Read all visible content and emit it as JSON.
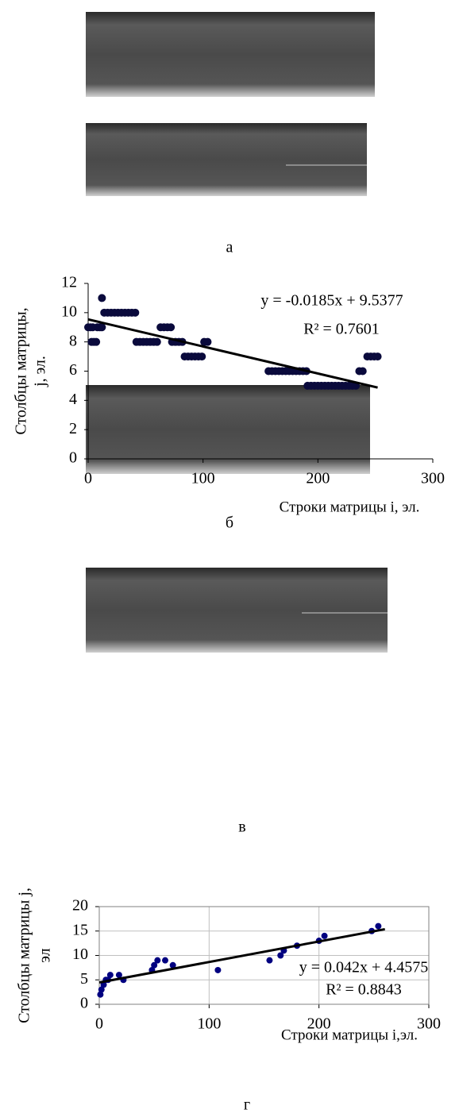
{
  "panel_labels": [
    "а",
    "б",
    "в",
    "г"
  ],
  "chart_data": [
    {
      "type": "scatter",
      "ylabel": [
        "Столбцы матрицы,",
        "j, эл."
      ],
      "xlabel": "Строки матрицы i, эл.",
      "x": [
        0,
        2,
        4,
        3,
        5,
        7,
        8,
        10,
        12,
        12,
        14,
        17,
        20,
        23,
        26,
        29,
        32,
        35,
        38,
        41,
        42,
        45,
        48,
        51,
        54,
        57,
        60,
        63,
        66,
        69,
        72,
        73,
        76,
        79,
        82,
        84,
        87,
        90,
        93,
        96,
        99,
        101,
        104,
        157,
        160,
        163,
        166,
        169,
        172,
        175,
        178,
        181,
        184,
        187,
        190,
        191,
        194,
        197,
        200,
        203,
        206,
        209,
        212,
        215,
        218,
        221,
        224,
        227,
        230,
        233,
        236,
        239,
        243,
        246,
        249,
        252
      ],
      "values": [
        9,
        9,
        9,
        8,
        8,
        8,
        9,
        9,
        9,
        11,
        10,
        10,
        10,
        10,
        10,
        10,
        10,
        10,
        10,
        10,
        8,
        8,
        8,
        8,
        8,
        8,
        8,
        9,
        9,
        9,
        9,
        8,
        8,
        8,
        8,
        7,
        7,
        7,
        7,
        7,
        7,
        8,
        8,
        6,
        6,
        6,
        6,
        6,
        6,
        6,
        6,
        6,
        6,
        6,
        6,
        5,
        5,
        5,
        5,
        5,
        5,
        5,
        5,
        5,
        5,
        5,
        5,
        5,
        5,
        5,
        6,
        6,
        7,
        7,
        7,
        7
      ],
      "color": "#0a0a3c",
      "trendline": {
        "slope": -0.0185,
        "intercept": 9.5377,
        "x_range": [
          0,
          252
        ],
        "color": "#000000"
      },
      "equation": "y = -0.0185x + 9.5377",
      "r2_label": "R² = 0.7601",
      "xlim": [
        0,
        300
      ],
      "xticks": [
        0,
        100,
        200,
        300
      ],
      "ylim": [
        0,
        12
      ],
      "yticks": [
        0,
        2,
        4,
        6,
        8,
        10,
        12
      ],
      "grid": false
    },
    {
      "type": "scatter",
      "ylabel": [
        "Столбцы матрицы j,",
        "эл"
      ],
      "xlabel": "Строки матрицы i,эл.",
      "x": [
        1,
        2,
        4,
        6,
        8,
        10,
        18,
        22,
        48,
        50,
        53,
        60,
        67,
        108,
        155,
        165,
        168,
        180,
        200,
        205,
        248,
        254
      ],
      "values": [
        2,
        3,
        4,
        5,
        5,
        6,
        6,
        5,
        7,
        8,
        9,
        9,
        8,
        7,
        9,
        10,
        11,
        12,
        13,
        14,
        15,
        16
      ],
      "color": "#000080",
      "trendline": {
        "slope": 0.042,
        "intercept": 4.4575,
        "x_range": [
          0,
          260
        ],
        "color": "#000000"
      },
      "equation": "y = 0.042x + 4.4575",
      "r2_label": "R² = 0.8843",
      "xlim": [
        0,
        300
      ],
      "xticks": [
        0,
        100,
        200,
        300
      ],
      "ylim": [
        0,
        20
      ],
      "yticks": [
        0,
        5,
        10,
        15,
        20
      ],
      "grid": true
    }
  ]
}
